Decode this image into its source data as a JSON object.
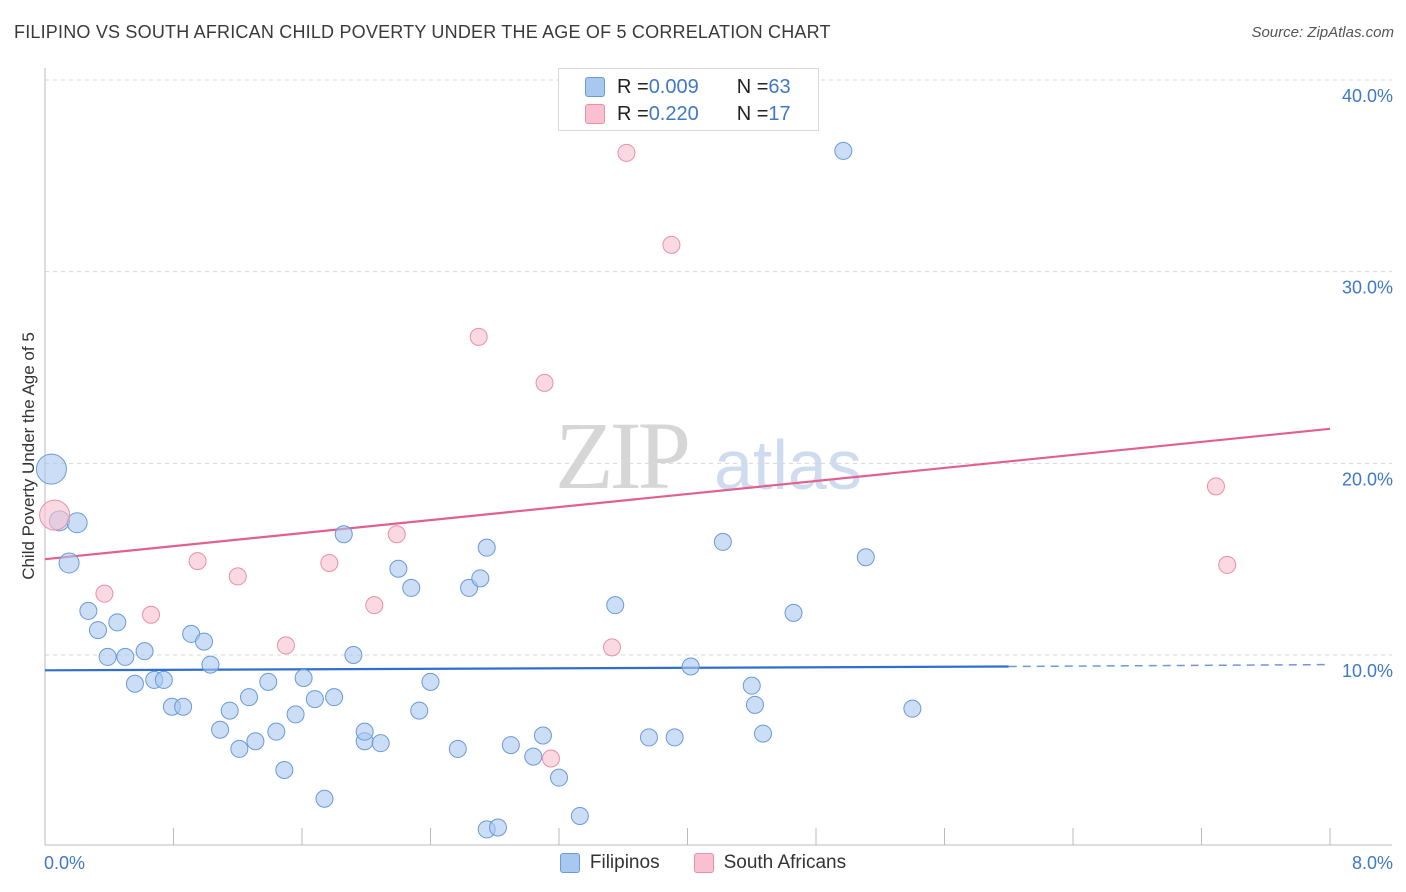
{
  "title": "FILIPINO VS SOUTH AFRICAN CHILD POVERTY UNDER THE AGE OF 5 CORRELATION CHART",
  "source": "Source: ZipAtlas.com",
  "watermark": {
    "zip": "ZIP",
    "atlas": "atlas"
  },
  "legend": {
    "rows": [
      {
        "r_label": "R = ",
        "r_value": "0.009",
        "n_label": "N = ",
        "n_value": "63",
        "color": "#a8c8f0",
        "border": "#6a9ad8"
      },
      {
        "r_label": "R = ",
        "r_value": "0.220",
        "n_label": "N = ",
        "n_value": "17",
        "color": "#f8c0d0",
        "border": "#e890a8"
      }
    ]
  },
  "bottom_legend": [
    {
      "label": "Filipinos",
      "color": "#a8c8f0",
      "border": "#6a9ad8"
    },
    {
      "label": "South Africans",
      "color": "#f8c0d0",
      "border": "#e890a8"
    }
  ],
  "chart_data": {
    "type": "scatter",
    "title": "FILIPINO VS SOUTH AFRICAN CHILD POVERTY UNDER THE AGE OF 5 CORRELATION CHART",
    "xlabel": "",
    "ylabel": "Child Poverty Under the Age of 5",
    "xlim": [
      0,
      8
    ],
    "ylim": [
      0,
      41
    ],
    "x_tick_labels": [
      "0.0%",
      "8.0%"
    ],
    "y_ticks": [
      10,
      20,
      30,
      40
    ],
    "y_tick_labels": [
      "10.0%",
      "20.0%",
      "30.0%",
      "40.0%"
    ],
    "series": [
      {
        "name": "Filipinos",
        "color": "#a8c8f0",
        "stroke": "#6a9ad8",
        "trend": {
          "x0": 0.0,
          "y0": 9.2,
          "x1": 6.0,
          "y1": 9.4,
          "x_dash_end": 8.0,
          "y_dash_end": 9.5,
          "color": "#2f6fd0"
        },
        "points": [
          [
            0.04,
            19.7,
            "big"
          ],
          [
            0.09,
            17.0,
            "mid"
          ],
          [
            0.2,
            16.9,
            "mid"
          ],
          [
            0.15,
            14.8,
            "mid"
          ],
          [
            0.27,
            12.3
          ],
          [
            0.33,
            11.3
          ],
          [
            0.45,
            11.7
          ],
          [
            0.39,
            9.9
          ],
          [
            0.5,
            9.9
          ],
          [
            0.56,
            8.5
          ],
          [
            0.62,
            10.2
          ],
          [
            0.68,
            8.7
          ],
          [
            0.74,
            8.7
          ],
          [
            0.79,
            7.3
          ],
          [
            0.86,
            7.3
          ],
          [
            0.91,
            11.1
          ],
          [
            0.99,
            10.7
          ],
          [
            1.03,
            9.5
          ],
          [
            1.09,
            6.1
          ],
          [
            1.15,
            7.1
          ],
          [
            1.21,
            5.1
          ],
          [
            1.27,
            7.8
          ],
          [
            1.31,
            5.5
          ],
          [
            1.39,
            8.6
          ],
          [
            1.44,
            6.0
          ],
          [
            1.49,
            4.0
          ],
          [
            1.56,
            6.9
          ],
          [
            1.61,
            8.8
          ],
          [
            1.68,
            7.7
          ],
          [
            1.74,
            2.5
          ],
          [
            1.8,
            7.8
          ],
          [
            1.86,
            16.3
          ],
          [
            1.92,
            10.0
          ],
          [
            1.99,
            5.5
          ],
          [
            1.99,
            6.0
          ],
          [
            2.09,
            5.4
          ],
          [
            2.2,
            14.5
          ],
          [
            2.28,
            13.5
          ],
          [
            2.33,
            7.1
          ],
          [
            2.4,
            8.6
          ],
          [
            2.57,
            5.1
          ],
          [
            2.64,
            13.5
          ],
          [
            2.71,
            14.0
          ],
          [
            2.75,
            15.6
          ],
          [
            2.75,
            0.9
          ],
          [
            2.82,
            1.0
          ],
          [
            2.9,
            5.3
          ],
          [
            3.04,
            4.7
          ],
          [
            3.1,
            5.8
          ],
          [
            3.2,
            3.6
          ],
          [
            3.33,
            1.6
          ],
          [
            3.55,
            12.6
          ],
          [
            3.76,
            5.7
          ],
          [
            3.92,
            5.7
          ],
          [
            4.02,
            9.4
          ],
          [
            4.22,
            15.9
          ],
          [
            4.4,
            8.4
          ],
          [
            4.42,
            7.4
          ],
          [
            4.47,
            5.9
          ],
          [
            4.66,
            12.2
          ],
          [
            4.97,
            36.3
          ],
          [
            5.11,
            15.1
          ],
          [
            5.4,
            7.2
          ]
        ]
      },
      {
        "name": "South Africans",
        "color": "#f8c0d0",
        "stroke": "#e890a8",
        "trend": {
          "x0": 0.0,
          "y0": 15.0,
          "x1": 8.0,
          "y1": 21.8,
          "color": "#e06090"
        },
        "points": [
          [
            0.06,
            17.3,
            "big"
          ],
          [
            0.37,
            13.2
          ],
          [
            0.66,
            12.1
          ],
          [
            0.95,
            14.9
          ],
          [
            1.2,
            14.1
          ],
          [
            1.5,
            10.5
          ],
          [
            1.77,
            14.8
          ],
          [
            2.05,
            12.6
          ],
          [
            2.19,
            16.3
          ],
          [
            2.7,
            26.6
          ],
          [
            3.11,
            24.2
          ],
          [
            3.15,
            4.6
          ],
          [
            3.53,
            10.4
          ],
          [
            3.62,
            36.2
          ],
          [
            3.9,
            31.4
          ],
          [
            7.29,
            18.8
          ],
          [
            7.36,
            14.7
          ]
        ]
      }
    ]
  }
}
